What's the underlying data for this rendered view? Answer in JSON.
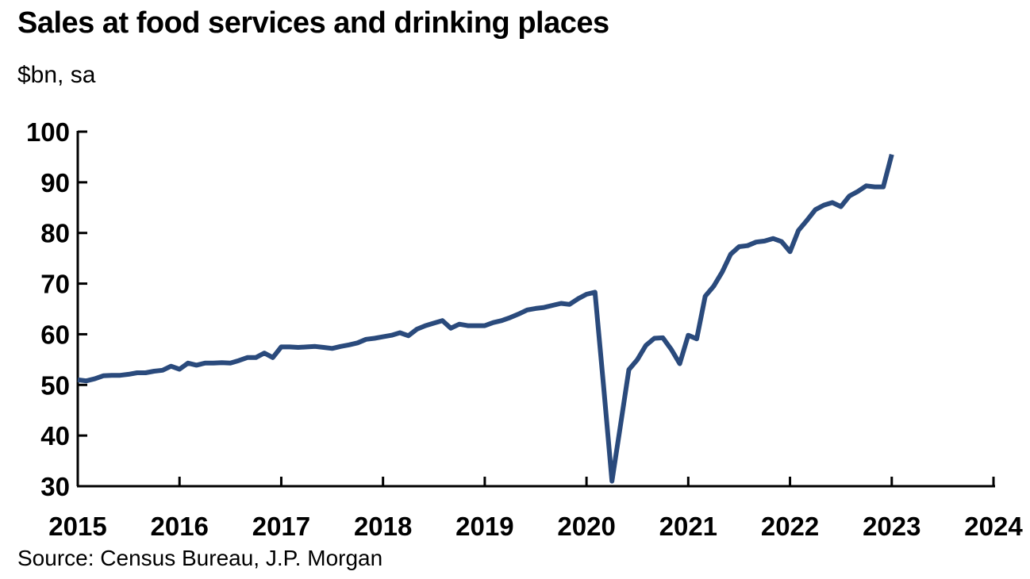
{
  "chart_data": {
    "type": "line",
    "title": "Sales at food services and drinking places",
    "subtitle": "$bn, sa",
    "source": "Source: Census Bureau, J.P. Morgan",
    "xlabel": "",
    "ylabel": "",
    "ylim": [
      30,
      100
    ],
    "xlim": [
      2015,
      2024
    ],
    "y_ticks": [
      30,
      40,
      50,
      60,
      70,
      80,
      90,
      100
    ],
    "x_ticks": [
      2015,
      2016,
      2017,
      2018,
      2019,
      2020,
      2021,
      2022,
      2023,
      2024
    ],
    "grid": false,
    "legend": "none",
    "line_color": "#2a4a7c",
    "series": [
      {
        "x": [
          "2015-01",
          "2015-02",
          "2015-03",
          "2015-04",
          "2015-05",
          "2015-06",
          "2015-07",
          "2015-08",
          "2015-09",
          "2015-10",
          "2015-11",
          "2015-12",
          "2016-01",
          "2016-02",
          "2016-03",
          "2016-04",
          "2016-05",
          "2016-06",
          "2016-07",
          "2016-08",
          "2016-09",
          "2016-10",
          "2016-11",
          "2016-12",
          "2017-01",
          "2017-02",
          "2017-03",
          "2017-04",
          "2017-05",
          "2017-06",
          "2017-07",
          "2017-08",
          "2017-09",
          "2017-10",
          "2017-11",
          "2017-12",
          "2018-01",
          "2018-02",
          "2018-03",
          "2018-04",
          "2018-05",
          "2018-06",
          "2018-07",
          "2018-08",
          "2018-09",
          "2018-10",
          "2018-11",
          "2018-12",
          "2019-01",
          "2019-02",
          "2019-03",
          "2019-04",
          "2019-05",
          "2019-06",
          "2019-07",
          "2019-08",
          "2019-09",
          "2019-10",
          "2019-11",
          "2019-12",
          "2020-01",
          "2020-02",
          "2020-03",
          "2020-04",
          "2020-05",
          "2020-06",
          "2020-07",
          "2020-08",
          "2020-09",
          "2020-10",
          "2020-11",
          "2020-12",
          "2021-01",
          "2021-02",
          "2021-03",
          "2021-04",
          "2021-05",
          "2021-06",
          "2021-07",
          "2021-08",
          "2021-09",
          "2021-10",
          "2021-11",
          "2021-12",
          "2022-01",
          "2022-02",
          "2022-03",
          "2022-04",
          "2022-05",
          "2022-06",
          "2022-07",
          "2022-08",
          "2022-09",
          "2022-10",
          "2022-11",
          "2022-12",
          "2023-01"
        ],
        "values": [
          51.0,
          50.8,
          51.2,
          51.8,
          51.9,
          51.9,
          52.1,
          52.4,
          52.4,
          52.7,
          52.9,
          53.7,
          53.1,
          54.3,
          53.9,
          54.3,
          54.3,
          54.4,
          54.3,
          54.8,
          55.4,
          55.4,
          56.3,
          55.4,
          57.5,
          57.5,
          57.4,
          57.5,
          57.6,
          57.4,
          57.2,
          57.6,
          57.9,
          58.3,
          59.0,
          59.2,
          59.5,
          59.8,
          60.3,
          59.7,
          61.0,
          61.7,
          62.2,
          62.7,
          61.2,
          62.0,
          61.7,
          61.7,
          61.7,
          62.3,
          62.7,
          63.3,
          64.0,
          64.8,
          65.1,
          65.3,
          65.7,
          66.1,
          65.9,
          67.0,
          67.9,
          68.3,
          50.0,
          31.0,
          42.0,
          53.0,
          55.0,
          57.8,
          59.2,
          59.3,
          57.0,
          54.2,
          59.8,
          59.1,
          67.5,
          69.5,
          72.3,
          75.8,
          77.3,
          77.5,
          78.2,
          78.4,
          78.9,
          78.3,
          76.3,
          80.5,
          82.5,
          84.6,
          85.5,
          86.0,
          85.2,
          87.3,
          88.2,
          89.3,
          89.1,
          89.1,
          95.5
        ]
      }
    ]
  }
}
